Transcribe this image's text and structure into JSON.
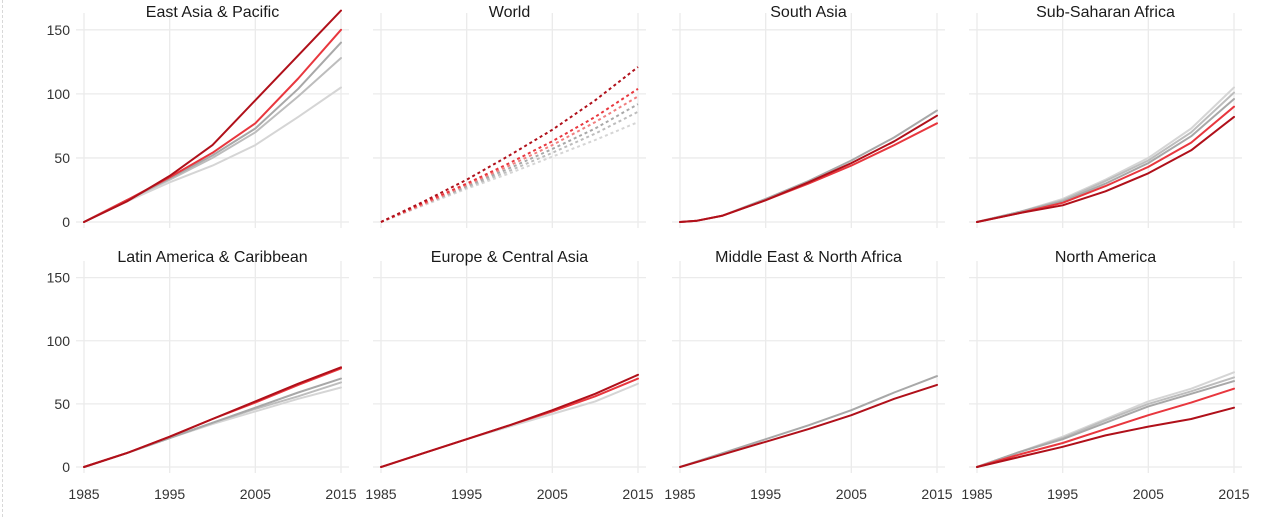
{
  "chart_data": {
    "type": "line",
    "layout": "small-multiples 2x4, shared axes",
    "x_ticks": [
      1985,
      1995,
      2005,
      2015
    ],
    "y_ticks": [
      0,
      50,
      100,
      150
    ],
    "xlim": [
      1985,
      2015
    ],
    "ylim": [
      0,
      160
    ],
    "grid": true,
    "colors": {
      "dark_red": "#b0101a",
      "red": "#e8373e",
      "light_red": "#f08080",
      "gray_dark": "#a8a8a8",
      "gray_mid": "#bdbdbd",
      "gray_light": "#d5d5d5",
      "grid": "#ebebeb"
    },
    "panels": [
      {
        "title": "East Asia & Pacific",
        "dashed": false,
        "series": [
          {
            "color": "gray_light",
            "x": [
              1985,
              1990,
              1995,
              2000,
              2005,
              2010,
              2015
            ],
            "values": [
              0,
              16,
              31,
              44,
              60,
              82,
              105
            ]
          },
          {
            "color": "gray_mid",
            "x": [
              1985,
              1990,
              1995,
              2000,
              2005,
              2010,
              2015
            ],
            "values": [
              0,
              17,
              33,
              50,
              70,
              98,
              128
            ]
          },
          {
            "color": "gray_dark",
            "x": [
              1985,
              1990,
              1995,
              2000,
              2005,
              2010,
              2015
            ],
            "values": [
              0,
              17,
              34,
              52,
              73,
              104,
              140
            ]
          },
          {
            "color": "red",
            "x": [
              1985,
              1990,
              1995,
              2000,
              2005,
              2010,
              2015
            ],
            "values": [
              0,
              17,
              35,
              54,
              77,
              112,
              150
            ]
          },
          {
            "color": "dark_red",
            "x": [
              1985,
              1990,
              1995,
              2000,
              2005,
              2010,
              2015
            ],
            "values": [
              0,
              16,
              36,
              60,
              95,
              130,
              165
            ]
          }
        ]
      },
      {
        "title": "World",
        "dashed": true,
        "series": [
          {
            "color": "gray_light",
            "x": [
              1985,
              1990,
              1995,
              2000,
              2005,
              2010,
              2015
            ],
            "values": [
              0,
              13,
              26,
              38,
              51,
              64,
              78
            ]
          },
          {
            "color": "gray_mid",
            "x": [
              1985,
              1990,
              1995,
              2000,
              2005,
              2010,
              2015
            ],
            "values": [
              0,
              14,
              27,
              40,
              54,
              69,
              86
            ]
          },
          {
            "color": "gray_dark",
            "x": [
              1985,
              1990,
              1995,
              2000,
              2005,
              2010,
              2015
            ],
            "values": [
              0,
              14,
              28,
              42,
              57,
              73,
              92
            ]
          },
          {
            "color": "light_red",
            "x": [
              1985,
              1990,
              1995,
              2000,
              2005,
              2010,
              2015
            ],
            "values": [
              0,
              14,
              29,
              44,
              60,
              78,
              98
            ]
          },
          {
            "color": "red",
            "x": [
              1985,
              1990,
              1995,
              2000,
              2005,
              2010,
              2015
            ],
            "values": [
              0,
              15,
              30,
              46,
              63,
              82,
              104
            ]
          },
          {
            "color": "dark_red",
            "x": [
              1985,
              1990,
              1995,
              2000,
              2005,
              2010,
              2015
            ],
            "values": [
              0,
              16,
              33,
              52,
              72,
              95,
              121
            ]
          }
        ]
      },
      {
        "title": "South Asia",
        "dashed": false,
        "series": [
          {
            "color": "gray_dark",
            "x": [
              1985,
              1987,
              1990,
              1995,
              2000,
              2005,
              2010,
              2015
            ],
            "values": [
              0,
              1,
              5,
              18,
              32,
              48,
              66,
              87
            ]
          },
          {
            "color": "red",
            "x": [
              1985,
              1987,
              1990,
              1995,
              2000,
              2005,
              2010,
              2015
            ],
            "values": [
              0,
              1,
              5,
              17,
              30,
              44,
              60,
              77
            ]
          },
          {
            "color": "dark_red",
            "x": [
              1985,
              1987,
              1990,
              1995,
              2000,
              2005,
              2010,
              2015
            ],
            "values": [
              0,
              1,
              5,
              17,
              31,
              46,
              63,
              83
            ]
          }
        ]
      },
      {
        "title": "Sub-Saharan Africa",
        "dashed": false,
        "series": [
          {
            "color": "gray_light",
            "x": [
              1985,
              1990,
              1995,
              2000,
              2005,
              2010,
              2015
            ],
            "values": [
              0,
              8,
              18,
              33,
              50,
              73,
              105
            ]
          },
          {
            "color": "gray_mid",
            "x": [
              1985,
              1990,
              1995,
              2000,
              2005,
              2010,
              2015
            ],
            "values": [
              0,
              8,
              17,
              32,
              48,
              70,
              101
            ]
          },
          {
            "color": "gray_dark",
            "x": [
              1985,
              1990,
              1995,
              2000,
              2005,
              2010,
              2015
            ],
            "values": [
              0,
              8,
              16,
              30,
              46,
              67,
              96
            ]
          },
          {
            "color": "red",
            "x": [
              1985,
              1990,
              1995,
              2000,
              2005,
              2010,
              2015
            ],
            "values": [
              0,
              7,
              15,
              28,
              43,
              62,
              90
            ]
          },
          {
            "color": "dark_red",
            "x": [
              1985,
              1990,
              1995,
              2000,
              2005,
              2010,
              2015
            ],
            "values": [
              0,
              7,
              13,
              24,
              38,
              56,
              82
            ]
          }
        ]
      },
      {
        "title": "Latin America & Caribbean",
        "dashed": false,
        "series": [
          {
            "color": "gray_light",
            "x": [
              1985,
              1990,
              1995,
              2000,
              2005,
              2010,
              2015
            ],
            "values": [
              0,
              11,
              23,
              34,
              44,
              54,
              63
            ]
          },
          {
            "color": "gray_mid",
            "x": [
              1985,
              1990,
              1995,
              2000,
              2005,
              2010,
              2015
            ],
            "values": [
              0,
              11,
              23,
              35,
              46,
              56,
              67
            ]
          },
          {
            "color": "gray_dark",
            "x": [
              1985,
              1990,
              1995,
              2000,
              2005,
              2010,
              2015
            ],
            "values": [
              0,
              11,
              23,
              35,
              47,
              59,
              70
            ]
          },
          {
            "color": "red",
            "x": [
              1985,
              1990,
              1995,
              2000,
              2005,
              2010,
              2015
            ],
            "values": [
              0,
              11,
              24,
              38,
              51,
              65,
              78
            ]
          },
          {
            "color": "dark_red",
            "x": [
              1985,
              1990,
              1995,
              2000,
              2005,
              2010,
              2015
            ],
            "values": [
              0,
              11,
              24,
              38,
              52,
              66,
              79
            ]
          }
        ]
      },
      {
        "title": "Europe & Central Asia",
        "dashed": false,
        "series": [
          {
            "color": "gray_light",
            "x": [
              1985,
              1990,
              1995,
              2000,
              2005,
              2010,
              2015
            ],
            "values": [
              0,
              11,
              22,
              32,
              42,
              52,
              66
            ]
          },
          {
            "color": "red",
            "x": [
              1985,
              1990,
              1995,
              2000,
              2005,
              2010,
              2015
            ],
            "values": [
              0,
              11,
              22,
              33,
              44,
              56,
              70
            ]
          },
          {
            "color": "dark_red",
            "x": [
              1985,
              1990,
              1995,
              2000,
              2005,
              2010,
              2015
            ],
            "values": [
              0,
              11,
              22,
              33,
              45,
              58,
              73
            ]
          }
        ]
      },
      {
        "title": "Middle East & North Africa",
        "dashed": false,
        "series": [
          {
            "color": "gray_dark",
            "x": [
              1985,
              1990,
              1995,
              2000,
              2005,
              2010,
              2015
            ],
            "values": [
              0,
              11,
              22,
              33,
              45,
              59,
              72
            ]
          },
          {
            "color": "dark_red",
            "x": [
              1985,
              1990,
              1995,
              2000,
              2005,
              2010,
              2015
            ],
            "values": [
              0,
              10,
              20,
              30,
              41,
              54,
              65
            ]
          }
        ]
      },
      {
        "title": "North America",
        "dashed": false,
        "series": [
          {
            "color": "gray_light",
            "x": [
              1985,
              1990,
              1995,
              2000,
              2005,
              2010,
              2015
            ],
            "values": [
              0,
              12,
              24,
              38,
              52,
              62,
              75
            ]
          },
          {
            "color": "gray_mid",
            "x": [
              1985,
              1990,
              1995,
              2000,
              2005,
              2010,
              2015
            ],
            "values": [
              0,
              12,
              23,
              37,
              50,
              60,
              71
            ]
          },
          {
            "color": "gray_dark",
            "x": [
              1985,
              1990,
              1995,
              2000,
              2005,
              2010,
              2015
            ],
            "values": [
              0,
              12,
              22,
              35,
              48,
              58,
              68
            ]
          },
          {
            "color": "red",
            "x": [
              1985,
              1990,
              1995,
              2000,
              2005,
              2010,
              2015
            ],
            "values": [
              0,
              10,
              19,
              30,
              41,
              51,
              62
            ]
          },
          {
            "color": "dark_red",
            "x": [
              1985,
              1990,
              1995,
              2000,
              2005,
              2010,
              2015
            ],
            "values": [
              0,
              8,
              16,
              25,
              32,
              38,
              47
            ]
          }
        ]
      }
    ]
  }
}
